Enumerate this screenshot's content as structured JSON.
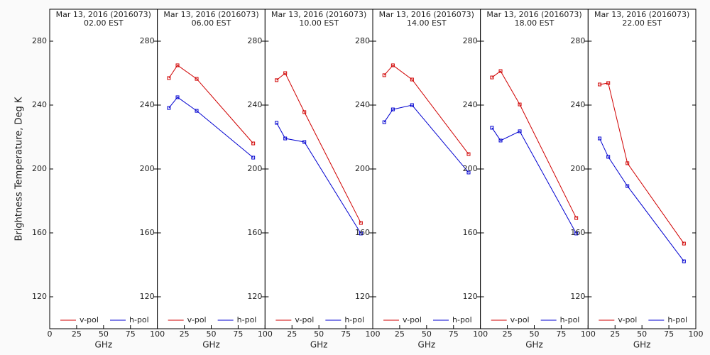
{
  "chart_data": [
    {
      "type": "line",
      "title": "Mar 13, 2016 (2016073)",
      "subtitle": "02.00 EST",
      "ylabel": "Brightness Temperature, Deg K",
      "xlabel": "GHz",
      "x": [
        10.7,
        18.7,
        36.5,
        89
      ],
      "xlim": [
        0,
        100
      ],
      "xticks": [
        0,
        25,
        50,
        75,
        100
      ],
      "ylim": [
        100,
        300
      ],
      "yticks": [
        120,
        160,
        200,
        240,
        280
      ],
      "series": [
        {
          "name": "v-pol",
          "color": "#d00000",
          "values": [
            null,
            null,
            null,
            null
          ]
        },
        {
          "name": "h-pol",
          "color": "#0000d0",
          "values": [
            null,
            null,
            null,
            null
          ]
        }
      ]
    },
    {
      "type": "line",
      "title": "Mar 13, 2016 (2016073)",
      "subtitle": "06.00 EST",
      "xlabel": "GHz",
      "x": [
        10.7,
        18.7,
        36.5,
        89
      ],
      "xlim": [
        0,
        100
      ],
      "xticks": [
        25,
        50,
        75,
        100
      ],
      "ylim": [
        100,
        300
      ],
      "yticks": [
        120,
        160,
        200,
        240,
        280
      ],
      "series": [
        {
          "name": "v-pol",
          "color": "#d00000",
          "values": [
            256.9,
            264.9,
            256.4,
            216.0
          ]
        },
        {
          "name": "h-pol",
          "color": "#0000d0",
          "values": [
            238.2,
            244.9,
            236.4,
            207.1
          ]
        }
      ]
    },
    {
      "type": "line",
      "title": "Mar 13, 2016 (2016073)",
      "subtitle": "10.00 EST",
      "xlabel": "GHz",
      "x": [
        10.7,
        18.7,
        36.5,
        89
      ],
      "xlim": [
        0,
        100
      ],
      "xticks": [
        25,
        50,
        75,
        100
      ],
      "ylim": [
        100,
        300
      ],
      "yticks": [
        120,
        160,
        200,
        240,
        280
      ],
      "series": [
        {
          "name": "v-pol",
          "color": "#d00000",
          "values": [
            255.6,
            260.0,
            235.6,
            166.2
          ]
        },
        {
          "name": "h-pol",
          "color": "#0000d0",
          "values": [
            228.9,
            219.1,
            216.9,
            159.6
          ]
        }
      ]
    },
    {
      "type": "line",
      "title": "Mar 13, 2016 (2016073)",
      "subtitle": "14.00 EST",
      "xlabel": "GHz",
      "x": [
        10.7,
        18.7,
        36.5,
        89
      ],
      "xlim": [
        0,
        100
      ],
      "xticks": [
        25,
        50,
        75,
        100
      ],
      "ylim": [
        100,
        300
      ],
      "yticks": [
        120,
        160,
        200,
        240,
        280
      ],
      "series": [
        {
          "name": "v-pol",
          "color": "#d00000",
          "values": [
            258.7,
            264.9,
            256.0,
            209.3
          ]
        },
        {
          "name": "h-pol",
          "color": "#0000d0",
          "values": [
            229.3,
            237.3,
            240.0,
            197.8
          ]
        }
      ]
    },
    {
      "type": "line",
      "title": "Mar 13, 2016 (2016073)",
      "subtitle": "18.00 EST",
      "xlabel": "GHz",
      "x": [
        10.7,
        18.7,
        36.5,
        89
      ],
      "xlim": [
        0,
        100
      ],
      "xticks": [
        25,
        50,
        75,
        100
      ],
      "ylim": [
        100,
        300
      ],
      "yticks": [
        120,
        160,
        200,
        240,
        280
      ],
      "series": [
        {
          "name": "v-pol",
          "color": "#d00000",
          "values": [
            257.3,
            261.3,
            240.4,
            169.3
          ]
        },
        {
          "name": "h-pol",
          "color": "#0000d0",
          "values": [
            225.8,
            217.8,
            223.6,
            159.6
          ]
        }
      ]
    },
    {
      "type": "line",
      "title": "Mar 13, 2016 (2016073)",
      "subtitle": "22.00 EST",
      "xlabel": "GHz",
      "x": [
        10.7,
        18.7,
        36.5,
        89
      ],
      "xlim": [
        0,
        100
      ],
      "xticks": [
        25,
        50,
        75,
        100
      ],
      "ylim": [
        100,
        300
      ],
      "yticks": [
        120,
        160,
        200,
        240,
        280
      ],
      "series": [
        {
          "name": "v-pol",
          "color": "#d00000",
          "values": [
            252.9,
            253.8,
            203.6,
            153.3
          ]
        },
        {
          "name": "h-pol",
          "color": "#0000d0",
          "values": [
            219.1,
            207.6,
            189.3,
            142.2
          ]
        }
      ]
    }
  ]
}
